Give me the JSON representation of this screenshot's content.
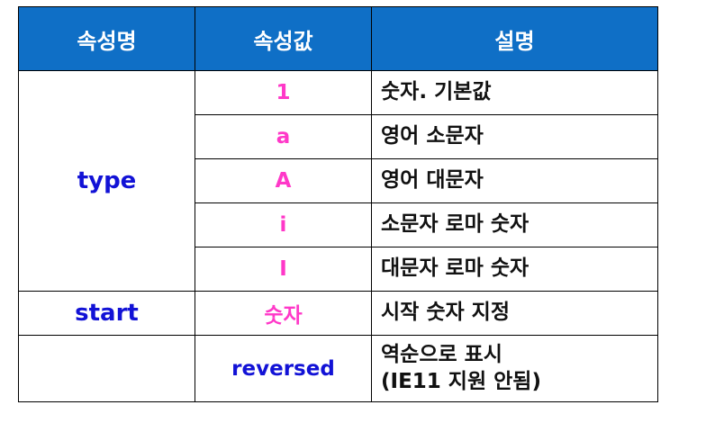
{
  "table": {
    "headers": [
      "속성명",
      "속성값",
      "설명"
    ],
    "colors": {
      "header_bg": "#0f6fc6",
      "name_text": "#1212d6",
      "value_pink": "#ff38c8",
      "value_blue": "#1212d6"
    },
    "groups": {
      "type": {
        "name": "type",
        "rows": [
          {
            "value": "1",
            "desc": "숫자. 기본값"
          },
          {
            "value": "a",
            "desc": "영어 소문자"
          },
          {
            "value": "A",
            "desc": "영어 대문자"
          },
          {
            "value": "i",
            "desc": "소문자 로마 숫자"
          },
          {
            "value": "I",
            "desc": "대문자 로마 숫자"
          }
        ]
      },
      "start": {
        "name": "start",
        "value": "숫자",
        "desc": "시작 숫자 지정"
      },
      "reversed": {
        "name": "",
        "value": "reversed",
        "desc_line1": "역순으로 표시",
        "desc_line2": "(IE11 지원 안됨)"
      }
    }
  }
}
